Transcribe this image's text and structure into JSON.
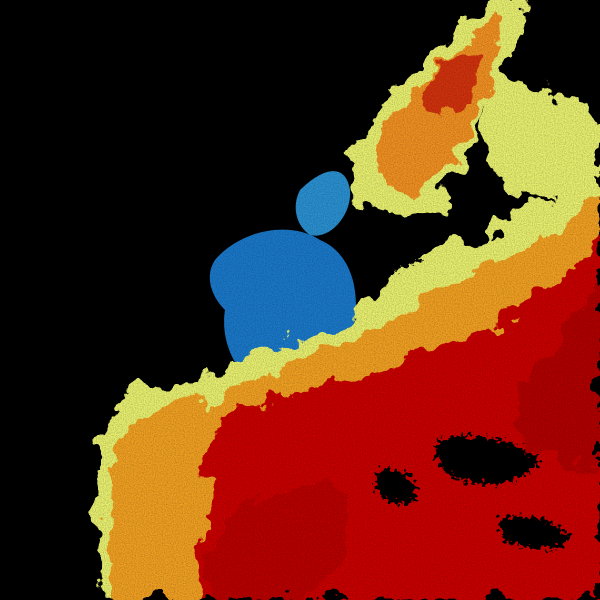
{
  "image": {
    "kind": "radar-reflectivity",
    "colors": {
      "background": "#000000",
      "low": "#1a78c8",
      "low_mid": "#5ec8e0",
      "mid": "#e8f070",
      "mid_high": "#f0b020",
      "high": "#e85010",
      "very_high": "#c00000"
    }
  }
}
